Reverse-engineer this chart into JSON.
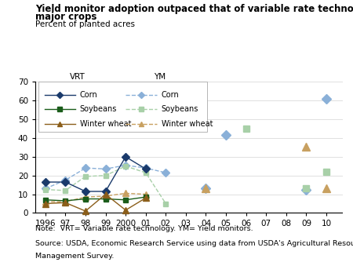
{
  "title_line1": "Yield monitor adoption outpaced that of variable rate technology for",
  "title_line2": "major crops",
  "subtitle": "Percent of planted acres",
  "note": "Note:  VRT= Variable rate technology. YM= Yield monitors.",
  "source_line1": "Source: USDA, Economic Research Service using data from USDA's Agricultural Resource",
  "source_line2": "Management Survey.",
  "xtick_labels": [
    "1996",
    "97",
    "98",
    "99",
    "2000",
    "01",
    "02",
    "03",
    "04",
    "05",
    "06",
    "07",
    "08",
    "09",
    "10"
  ],
  "xtick_values": [
    1996,
    1997,
    1998,
    1999,
    2000,
    2001,
    2002,
    2003,
    2004,
    2005,
    2006,
    2007,
    2008,
    2009,
    2010
  ],
  "ylim": [
    0,
    70
  ],
  "yticks": [
    0,
    10,
    20,
    30,
    40,
    50,
    60,
    70
  ],
  "vrt_corn_x": [
    1996,
    1997,
    1998,
    1999,
    2000,
    2001
  ],
  "vrt_corn_y": [
    16.5,
    16.5,
    11.5,
    11.5,
    30.0,
    23.5
  ],
  "vrt_corn_color": "#1a3a6b",
  "vrt_soybeans_x": [
    1996,
    1997,
    1998,
    1999,
    2000,
    2001
  ],
  "vrt_soybeans_y": [
    7.0,
    6.5,
    7.5,
    7.5,
    7.0,
    8.5
  ],
  "vrt_soybeans_color": "#1a5c1a",
  "vrt_wheat_x": [
    1996,
    1997,
    1998,
    1999,
    2000,
    2001
  ],
  "vrt_wheat_y": [
    5.0,
    5.5,
    1.0,
    10.0,
    1.5,
    8.0
  ],
  "vrt_wheat_color": "#8b5e1a",
  "ym_corn_x": [
    1996,
    1997,
    1998,
    1999,
    2000,
    2001,
    2002,
    2004,
    2005,
    2009,
    2010
  ],
  "ym_corn_y": [
    13.0,
    17.5,
    24.0,
    23.5,
    25.5,
    24.0,
    21.5,
    13.0,
    41.5,
    12.5,
    61.0
  ],
  "ym_corn_color": "#8ab0d8",
  "ym_soybeans_x": [
    1996,
    1997,
    1998,
    1999,
    2000,
    2001,
    2002,
    2006,
    2009,
    2010
  ],
  "ym_soybeans_y": [
    12.5,
    12.0,
    19.5,
    20.0,
    25.0,
    21.5,
    5.0,
    45.0,
    13.0,
    22.0
  ],
  "ym_soybeans_color": "#a8d0a8",
  "ym_wheat_x": [
    1996,
    1997,
    1998,
    1999,
    2000,
    2001,
    2004,
    2009,
    2010
  ],
  "ym_wheat_y": [
    6.0,
    6.0,
    8.5,
    9.0,
    10.5,
    10.0,
    13.0,
    35.5,
    13.0
  ],
  "ym_wheat_color": "#c8a060"
}
